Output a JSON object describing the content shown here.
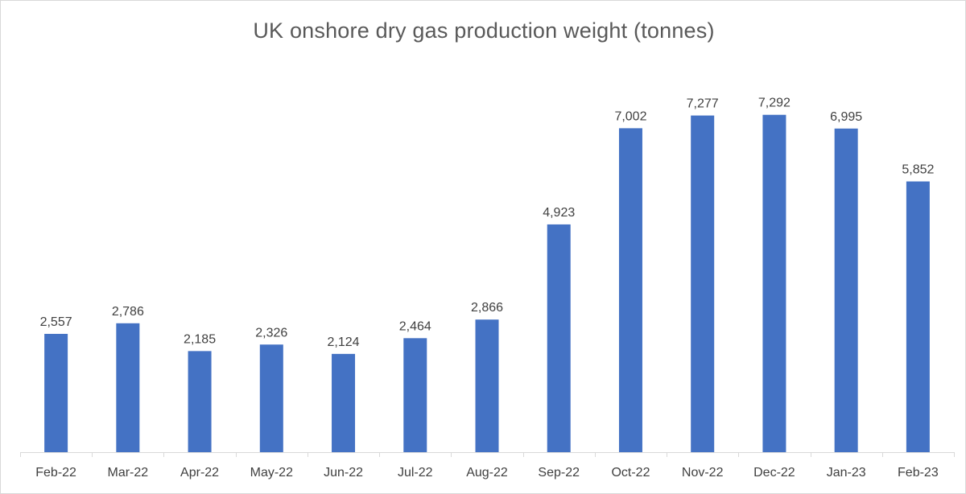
{
  "chart_data": {
    "type": "bar",
    "title": "UK onshore dry gas production weight (tonnes)",
    "xlabel": "",
    "ylabel": "",
    "categories": [
      "Feb-22",
      "Mar-22",
      "Apr-22",
      "May-22",
      "Jun-22",
      "Jul-22",
      "Aug-22",
      "Sep-22",
      "Oct-22",
      "Nov-22",
      "Dec-22",
      "Jan-23",
      "Feb-23"
    ],
    "values": [
      2557,
      2786,
      2185,
      2326,
      2124,
      2464,
      2866,
      4923,
      7002,
      7277,
      7292,
      6995,
      5852
    ],
    "data_labels": [
      "2,557",
      "2,786",
      "2,185",
      "2,326",
      "2,124",
      "2,464",
      "2,866",
      "4,923",
      "7,002",
      "7,277",
      "7,292",
      "6,995",
      "5,852"
    ],
    "ylim": [
      0,
      8000
    ],
    "grid": false,
    "legend": "none",
    "colors": {
      "bar": "#4472C4",
      "axis": "#d9d9d9",
      "text": "#404040",
      "title": "#595959"
    }
  }
}
